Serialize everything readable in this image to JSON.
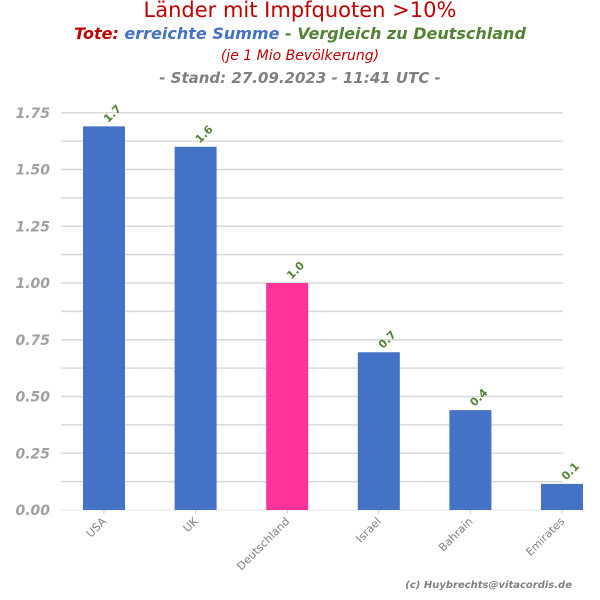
{
  "header": {
    "title": "Länder mit Impfquoten >10%",
    "subtitle_part1": "Tote:",
    "subtitle_part2": "erreichte Summe",
    "subtitle_part3": "- Vergleich zu Deutschland",
    "subtitle2": "(je 1 Mio Bevölkerung)",
    "subtitle3": "- Stand: 27.09.2023 - 11:41 UTC -"
  },
  "footer": {
    "credit": "(c) Huybrechts@vitacordis.de"
  },
  "colors": {
    "bar_default": "#4472c4",
    "bar_highlight": "#ff3399",
    "label": "#548235",
    "title_red": "#c00000",
    "grid": "#d9d9d9"
  },
  "chart_data": {
    "type": "bar",
    "title": "Länder mit Impfquoten >10%",
    "xlabel": "",
    "ylabel": "",
    "categories": [
      "USA",
      "UK",
      "Deutschland",
      "Israel",
      "Bahrain",
      "Emirates"
    ],
    "values": [
      1.69,
      1.6,
      1.0,
      0.695,
      0.44,
      0.115
    ],
    "data_labels": [
      "1.7",
      "1.6",
      "1.0",
      "0.7",
      "0.4",
      "0.1"
    ],
    "highlight_category": "Deutschland",
    "ylim": [
      0,
      1.8
    ],
    "yticks": [
      0.0,
      0.25,
      0.5,
      0.75,
      1.0,
      1.25,
      1.5,
      1.75
    ],
    "ytick_labels": [
      "0.00",
      "0.25",
      "0.50",
      "0.75",
      "1.00",
      "1.25",
      "1.50",
      "1.75"
    ],
    "grid": true
  }
}
